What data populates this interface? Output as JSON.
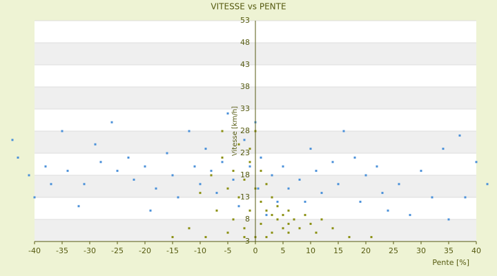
{
  "chart_data": {
    "type": "scatter",
    "title": "VITESSE vs PENTE",
    "x_label": "Pente [%]",
    "y_label": "Vitesse [km/h]",
    "xlim": [
      -40,
      40
    ],
    "xticks": [
      -40,
      -35,
      -30,
      -25,
      -20,
      -15,
      -10,
      -5,
      0,
      5,
      10,
      15,
      20,
      25,
      30,
      35,
      40
    ],
    "ylim": [
      3,
      53
    ],
    "yticks": [
      3,
      8,
      13,
      18,
      23,
      28,
      33,
      38,
      43,
      48,
      53
    ],
    "grid": true,
    "series": [
      {
        "color": "#4a90d9",
        "x": [
          -44,
          -43,
          -41,
          -40,
          -38,
          -37,
          -35,
          -34,
          -32,
          -31,
          -29,
          -28,
          -26,
          -25,
          -23,
          -22,
          -20,
          -19,
          -18,
          -16,
          -15,
          -14,
          -12,
          -11,
          -10,
          -9,
          -8,
          -7,
          -6,
          -5,
          -4,
          -3,
          -2,
          -1,
          0,
          0.5,
          1,
          2,
          3,
          4,
          5,
          6,
          7,
          8,
          9,
          10,
          11,
          12,
          14,
          15,
          16,
          18,
          19,
          20,
          22,
          23,
          24,
          26,
          28,
          30,
          32,
          34,
          35,
          37,
          38,
          40,
          42,
          44
        ],
        "values": [
          26,
          22,
          18,
          13,
          20,
          16,
          28,
          19,
          11,
          16,
          25,
          21,
          30,
          19,
          22,
          17,
          20,
          10,
          15,
          23,
          18,
          13,
          28,
          20,
          16,
          24,
          19,
          14,
          21,
          32,
          17,
          11,
          26,
          20,
          30,
          15,
          22,
          9,
          18,
          12,
          20,
          15,
          8,
          17,
          12,
          24,
          19,
          14,
          21,
          16,
          28,
          22,
          12,
          18,
          20,
          14,
          10,
          16,
          9,
          19,
          13,
          24,
          8,
          27,
          13,
          21,
          16,
          15
        ]
      },
      {
        "color": "#8a8f10",
        "x": [
          -12,
          -10,
          -8,
          -7,
          -6,
          -5,
          -5,
          -4,
          -4,
          -3,
          -3,
          -2,
          -2,
          -1,
          -1,
          0,
          0,
          0,
          1,
          1,
          1,
          2,
          2,
          3,
          3,
          4,
          4,
          5,
          5,
          6,
          6,
          7,
          8,
          9,
          10,
          11,
          12,
          14,
          17,
          21,
          -15,
          -9,
          -2,
          2,
          -6,
          -1,
          3,
          6
        ],
        "values": [
          6,
          14,
          18,
          10,
          22,
          5,
          15,
          19,
          8,
          25,
          13,
          17,
          6,
          21,
          10,
          28,
          15,
          4,
          19,
          12,
          7,
          16,
          10,
          13,
          5,
          11,
          8,
          9,
          6,
          10,
          7,
          8,
          6,
          9,
          7,
          5,
          8,
          6,
          4,
          4,
          4,
          4,
          4,
          4,
          28,
          24,
          9,
          5
        ]
      }
    ]
  }
}
